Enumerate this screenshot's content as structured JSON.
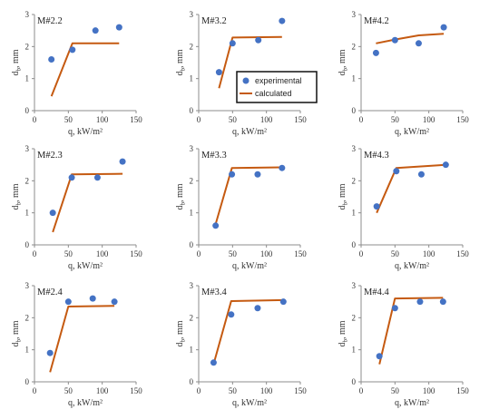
{
  "colors": {
    "experimental": "#4472C4",
    "calculated": "#C55A11",
    "axis": "#8c8c8c",
    "text": "#333333"
  },
  "chart_data": [
    {
      "type": "scatter",
      "title": "M#2.2",
      "xlabel": "q, kW/m²",
      "ylabel": "d",
      "ylabel_sub": "b",
      "ylabel_unit": ", mm",
      "xlim": [
        0,
        150
      ],
      "ylim": [
        0,
        3
      ],
      "xticks": [
        0,
        50,
        100,
        150
      ],
      "yticks": [
        0,
        1,
        2,
        3
      ],
      "legend": {
        "show": false
      },
      "series": [
        {
          "name": "experimental",
          "kind": "points",
          "points": [
            [
              25,
              1.6
            ],
            [
              56,
              1.9
            ],
            [
              90,
              2.5
            ],
            [
              125,
              2.6
            ]
          ]
        },
        {
          "name": "calculated",
          "kind": "line",
          "points": [
            [
              25,
              0.45
            ],
            [
              56,
              2.1
            ],
            [
              125,
              2.1
            ]
          ]
        }
      ]
    },
    {
      "type": "scatter",
      "title": "M#3.2",
      "xlabel": "q, kW/m²",
      "ylabel": "d",
      "ylabel_sub": "b",
      "ylabel_unit": ", mm",
      "xlim": [
        0,
        150
      ],
      "ylim": [
        0,
        3
      ],
      "xticks": [
        0,
        50,
        100,
        150
      ],
      "yticks": [
        0,
        1,
        2,
        3
      ],
      "legend": {
        "show": true,
        "position": "center-right",
        "items": [
          "experimental",
          "calculated"
        ]
      },
      "series": [
        {
          "name": "experimental",
          "kind": "points",
          "points": [
            [
              30,
              1.2
            ],
            [
              50,
              2.1
            ],
            [
              88,
              2.2
            ],
            [
              123,
              2.8
            ]
          ]
        },
        {
          "name": "calculated",
          "kind": "line",
          "points": [
            [
              30,
              0.7
            ],
            [
              50,
              2.28
            ],
            [
              123,
              2.3
            ]
          ]
        }
      ]
    },
    {
      "type": "scatter",
      "title": "M#4.2",
      "xlabel": "q, kW/m²",
      "ylabel": "d",
      "ylabel_sub": "b",
      "ylabel_unit": ", mm",
      "xlim": [
        0,
        150
      ],
      "ylim": [
        0,
        3
      ],
      "xticks": [
        0,
        50,
        100,
        150
      ],
      "yticks": [
        0,
        1,
        2,
        3
      ],
      "legend": {
        "show": false
      },
      "series": [
        {
          "name": "experimental",
          "kind": "points",
          "points": [
            [
              22,
              1.8
            ],
            [
              50,
              2.2
            ],
            [
              85,
              2.1
            ],
            [
              122,
              2.6
            ]
          ]
        },
        {
          "name": "calculated",
          "kind": "line",
          "points": [
            [
              22,
              2.1
            ],
            [
              50,
              2.22
            ],
            [
              85,
              2.35
            ],
            [
              122,
              2.4
            ]
          ]
        }
      ]
    },
    {
      "type": "scatter",
      "title": "M#2.3",
      "xlabel": "q, kW/m²",
      "ylabel": "d",
      "ylabel_sub": "b",
      "ylabel_unit": ", mm",
      "xlim": [
        0,
        150
      ],
      "ylim": [
        0,
        3
      ],
      "xticks": [
        0,
        50,
        100,
        150
      ],
      "yticks": [
        0,
        1,
        2,
        3
      ],
      "legend": {
        "show": false
      },
      "series": [
        {
          "name": "experimental",
          "kind": "points",
          "points": [
            [
              27,
              1.0
            ],
            [
              55,
              2.1
            ],
            [
              93,
              2.1
            ],
            [
              130,
              2.6
            ]
          ]
        },
        {
          "name": "calculated",
          "kind": "line",
          "points": [
            [
              27,
              0.4
            ],
            [
              55,
              2.2
            ],
            [
              130,
              2.22
            ]
          ]
        }
      ]
    },
    {
      "type": "scatter",
      "title": "M#3.3",
      "xlabel": "q, kW/m²",
      "ylabel": "d",
      "ylabel_sub": "b",
      "ylabel_unit": ", mm",
      "xlim": [
        0,
        150
      ],
      "ylim": [
        0,
        3
      ],
      "xticks": [
        0,
        50,
        100,
        150
      ],
      "yticks": [
        0,
        1,
        2,
        3
      ],
      "legend": {
        "show": false
      },
      "series": [
        {
          "name": "experimental",
          "kind": "points",
          "points": [
            [
              25,
              0.6
            ],
            [
              49,
              2.2
            ],
            [
              87,
              2.2
            ],
            [
              123,
              2.4
            ]
          ]
        },
        {
          "name": "calculated",
          "kind": "line",
          "points": [
            [
              25,
              0.65
            ],
            [
              49,
              2.4
            ],
            [
              123,
              2.42
            ]
          ]
        }
      ]
    },
    {
      "type": "scatter",
      "title": "M#4.3",
      "xlabel": "q, kW/m²",
      "ylabel": "d",
      "ylabel_sub": "b",
      "ylabel_unit": ", mm",
      "xlim": [
        0,
        150
      ],
      "ylim": [
        0,
        3
      ],
      "xticks": [
        0,
        50,
        100,
        150
      ],
      "yticks": [
        0,
        1,
        2,
        3
      ],
      "legend": {
        "show": false
      },
      "series": [
        {
          "name": "experimental",
          "kind": "points",
          "points": [
            [
              23,
              1.2
            ],
            [
              52,
              2.3
            ],
            [
              89,
              2.2
            ],
            [
              125,
              2.5
            ]
          ]
        },
        {
          "name": "calculated",
          "kind": "line",
          "points": [
            [
              23,
              1.0
            ],
            [
              52,
              2.4
            ],
            [
              125,
              2.5
            ]
          ]
        }
      ]
    },
    {
      "type": "scatter",
      "title": "M#2.4",
      "xlabel": "q, kW/m²",
      "ylabel": "d",
      "ylabel_sub": "b",
      "ylabel_unit": ", mm",
      "xlim": [
        0,
        150
      ],
      "ylim": [
        0,
        3
      ],
      "xticks": [
        0,
        50,
        100,
        150
      ],
      "yticks": [
        0,
        1,
        2,
        3
      ],
      "legend": {
        "show": false
      },
      "series": [
        {
          "name": "experimental",
          "kind": "points",
          "points": [
            [
              23,
              0.9
            ],
            [
              50,
              2.5
            ],
            [
              86,
              2.6
            ],
            [
              118,
              2.5
            ]
          ]
        },
        {
          "name": "calculated",
          "kind": "line",
          "points": [
            [
              23,
              0.3
            ],
            [
              50,
              2.35
            ],
            [
              118,
              2.37
            ]
          ]
        }
      ]
    },
    {
      "type": "scatter",
      "title": "M#3.4",
      "xlabel": "q, kW/m²",
      "ylabel": "d",
      "ylabel_sub": "b",
      "ylabel_unit": ", mm",
      "xlim": [
        0,
        150
      ],
      "ylim": [
        0,
        3
      ],
      "xticks": [
        0,
        50,
        100,
        150
      ],
      "yticks": [
        0,
        1,
        2,
        3
      ],
      "legend": {
        "show": false
      },
      "series": [
        {
          "name": "experimental",
          "kind": "points",
          "points": [
            [
              22,
              0.6
            ],
            [
              48,
              2.1
            ],
            [
              87,
              2.3
            ],
            [
              125,
              2.5
            ]
          ]
        },
        {
          "name": "calculated",
          "kind": "line",
          "points": [
            [
              22,
              0.55
            ],
            [
              48,
              2.52
            ],
            [
              125,
              2.55
            ]
          ]
        }
      ]
    },
    {
      "type": "scatter",
      "title": "M#4.4",
      "xlabel": "q, kW/m²",
      "ylabel": "d",
      "ylabel_sub": "b",
      "ylabel_unit": ", mm",
      "xlim": [
        0,
        150
      ],
      "ylim": [
        0,
        3
      ],
      "xticks": [
        0,
        50,
        100,
        150
      ],
      "yticks": [
        0,
        1,
        2,
        3
      ],
      "legend": {
        "show": false
      },
      "series": [
        {
          "name": "experimental",
          "kind": "points",
          "points": [
            [
              27,
              0.8
            ],
            [
              50,
              2.3
            ],
            [
              87,
              2.5
            ],
            [
              121,
              2.5
            ]
          ]
        },
        {
          "name": "calculated",
          "kind": "line",
          "points": [
            [
              27,
              0.55
            ],
            [
              50,
              2.6
            ],
            [
              121,
              2.62
            ]
          ]
        }
      ]
    }
  ]
}
